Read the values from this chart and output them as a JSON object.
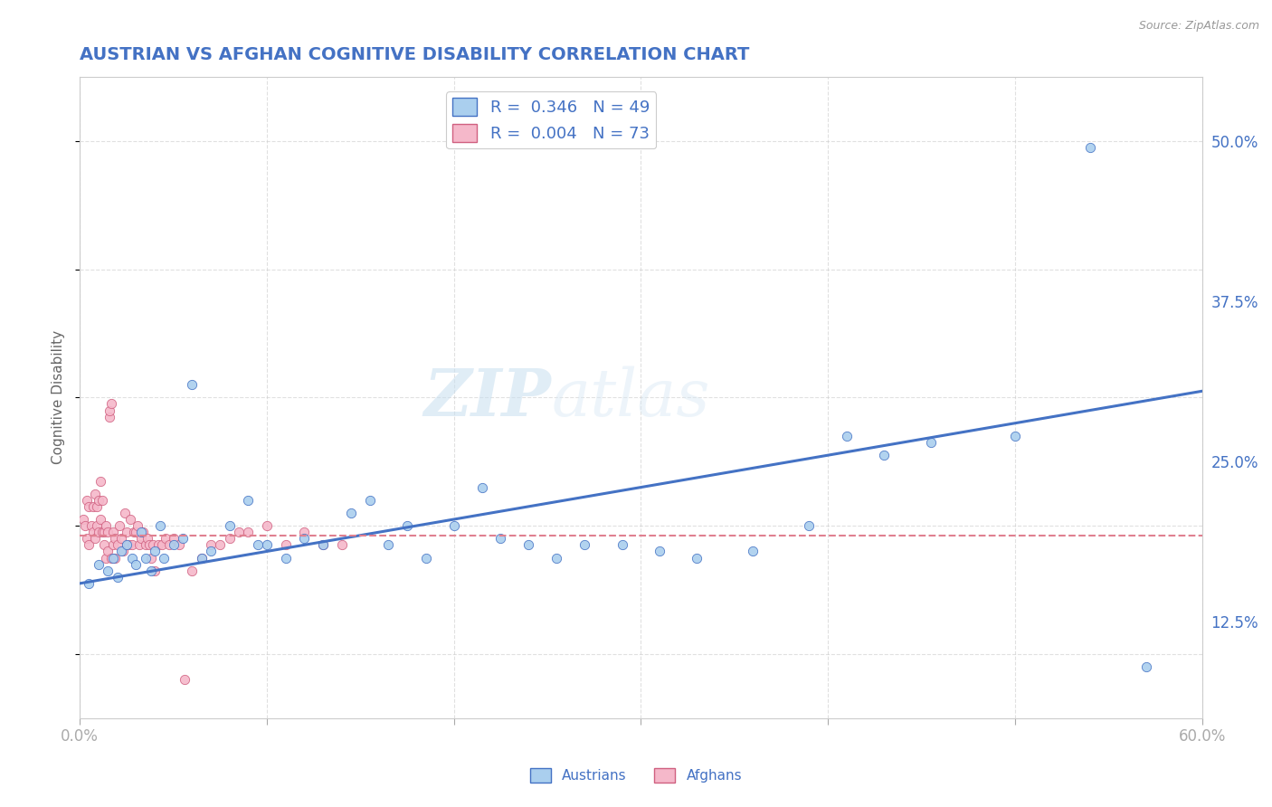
{
  "title": "AUSTRIAN VS AFGHAN COGNITIVE DISABILITY CORRELATION CHART",
  "source": "Source: ZipAtlas.com",
  "ylabel": "Cognitive Disability",
  "xlim": [
    0.0,
    0.6
  ],
  "ylim": [
    0.05,
    0.55
  ],
  "xticks": [
    0.0,
    0.1,
    0.2,
    0.3,
    0.4,
    0.5,
    0.6
  ],
  "xticklabels": [
    "0.0%",
    "",
    "",
    "",
    "",
    "",
    "60.0%"
  ],
  "ytick_labels_right": [
    "12.5%",
    "25.0%",
    "37.5%",
    "50.0%"
  ],
  "ytick_vals_right": [
    0.125,
    0.25,
    0.375,
    0.5
  ],
  "austrians_R": 0.346,
  "austrians_N": 49,
  "afghans_R": 0.004,
  "afghans_N": 73,
  "scatter_color_austrians": "#aacfee",
  "scatter_color_afghans": "#f5b8ca",
  "trendline_color_austrians": "#4472c4",
  "trendline_color_afghans": "#e08090",
  "background_color": "#ffffff",
  "grid_color": "#cccccc",
  "title_color": "#4472c4",
  "legend_text_color": "#4472c4",
  "watermark_zip": "ZIP",
  "watermark_atlas": "atlas",
  "austrians_x": [
    0.005,
    0.01,
    0.015,
    0.018,
    0.02,
    0.022,
    0.025,
    0.028,
    0.03,
    0.033,
    0.035,
    0.038,
    0.04,
    0.043,
    0.045,
    0.05,
    0.055,
    0.06,
    0.065,
    0.07,
    0.08,
    0.09,
    0.095,
    0.1,
    0.11,
    0.12,
    0.13,
    0.145,
    0.155,
    0.165,
    0.175,
    0.185,
    0.2,
    0.215,
    0.225,
    0.24,
    0.255,
    0.27,
    0.29,
    0.31,
    0.33,
    0.36,
    0.39,
    0.41,
    0.43,
    0.455,
    0.5,
    0.54,
    0.57
  ],
  "austrians_y": [
    0.155,
    0.17,
    0.165,
    0.175,
    0.16,
    0.18,
    0.185,
    0.175,
    0.17,
    0.195,
    0.175,
    0.165,
    0.18,
    0.2,
    0.175,
    0.185,
    0.19,
    0.31,
    0.175,
    0.18,
    0.2,
    0.22,
    0.185,
    0.185,
    0.175,
    0.19,
    0.185,
    0.21,
    0.22,
    0.185,
    0.2,
    0.175,
    0.2,
    0.23,
    0.19,
    0.185,
    0.175,
    0.185,
    0.185,
    0.18,
    0.175,
    0.18,
    0.2,
    0.27,
    0.255,
    0.265,
    0.27,
    0.495,
    0.09
  ],
  "afghans_x": [
    0.002,
    0.003,
    0.004,
    0.004,
    0.005,
    0.005,
    0.006,
    0.007,
    0.007,
    0.008,
    0.008,
    0.009,
    0.009,
    0.01,
    0.01,
    0.011,
    0.011,
    0.012,
    0.012,
    0.013,
    0.013,
    0.014,
    0.014,
    0.015,
    0.015,
    0.016,
    0.016,
    0.017,
    0.017,
    0.018,
    0.018,
    0.019,
    0.019,
    0.02,
    0.021,
    0.022,
    0.023,
    0.024,
    0.025,
    0.026,
    0.027,
    0.028,
    0.029,
    0.03,
    0.031,
    0.032,
    0.033,
    0.034,
    0.035,
    0.036,
    0.037,
    0.038,
    0.039,
    0.04,
    0.042,
    0.044,
    0.046,
    0.048,
    0.05,
    0.053,
    0.056,
    0.06,
    0.065,
    0.07,
    0.075,
    0.08,
    0.085,
    0.09,
    0.1,
    0.11,
    0.12,
    0.13,
    0.14
  ],
  "afghans_y": [
    0.205,
    0.2,
    0.19,
    0.22,
    0.185,
    0.215,
    0.2,
    0.215,
    0.195,
    0.225,
    0.19,
    0.215,
    0.2,
    0.22,
    0.195,
    0.235,
    0.205,
    0.22,
    0.195,
    0.185,
    0.195,
    0.2,
    0.175,
    0.195,
    0.18,
    0.285,
    0.29,
    0.295,
    0.175,
    0.185,
    0.195,
    0.19,
    0.175,
    0.185,
    0.2,
    0.19,
    0.18,
    0.21,
    0.195,
    0.185,
    0.205,
    0.185,
    0.195,
    0.195,
    0.2,
    0.185,
    0.19,
    0.195,
    0.185,
    0.19,
    0.185,
    0.175,
    0.185,
    0.165,
    0.185,
    0.185,
    0.19,
    0.185,
    0.19,
    0.185,
    0.08,
    0.165,
    0.175,
    0.185,
    0.185,
    0.19,
    0.195,
    0.195,
    0.2,
    0.185,
    0.195,
    0.185,
    0.185
  ],
  "trendline_austrians_x0": 0.0,
  "trendline_austrians_y0": 0.155,
  "trendline_austrians_x1": 0.6,
  "trendline_austrians_y1": 0.305,
  "trendline_afghans_x0": 0.0,
  "trendline_afghans_y0": 0.192,
  "trendline_afghans_x1": 0.6,
  "trendline_afghans_y1": 0.192
}
